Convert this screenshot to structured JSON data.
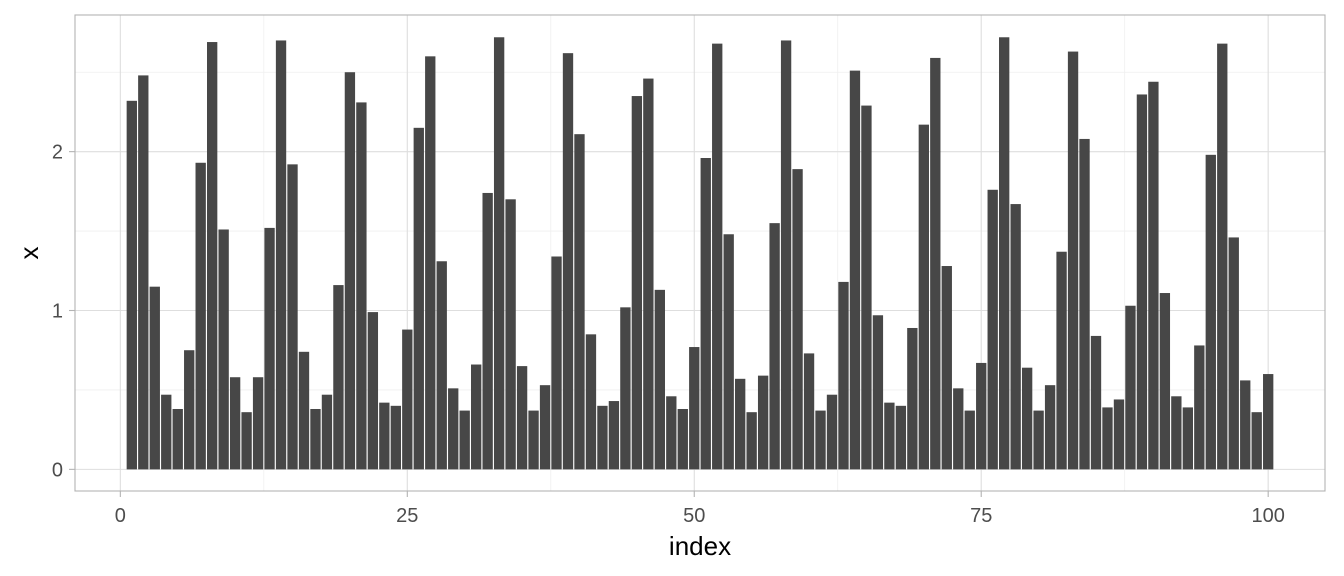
{
  "chart_data": {
    "type": "bar",
    "xlabel": "index",
    "ylabel": "x",
    "xlim": [
      -3.95,
      104.95
    ],
    "ylim": [
      -0.1362,
      2.8602
    ],
    "x_ticks": [
      0,
      25,
      50,
      75,
      100
    ],
    "x_tick_labels": [
      "0",
      "25",
      "50",
      "75",
      "100"
    ],
    "y_ticks": [
      0,
      1,
      2
    ],
    "y_tick_labels": [
      "0",
      "1",
      "2"
    ],
    "grid": true,
    "legend": "none",
    "bar_color": "#474747",
    "x": [
      1,
      2,
      3,
      4,
      5,
      6,
      7,
      8,
      9,
      10,
      11,
      12,
      13,
      14,
      15,
      16,
      17,
      18,
      19,
      20,
      21,
      22,
      23,
      24,
      25,
      26,
      27,
      28,
      29,
      30,
      31,
      32,
      33,
      34,
      35,
      36,
      37,
      38,
      39,
      40,
      41,
      42,
      43,
      44,
      45,
      46,
      47,
      48,
      49,
      50,
      51,
      52,
      53,
      54,
      55,
      56,
      57,
      58,
      59,
      60,
      61,
      62,
      63,
      64,
      65,
      66,
      67,
      68,
      69,
      70,
      71,
      72,
      73,
      74,
      75,
      76,
      77,
      78,
      79,
      80,
      81,
      82,
      83,
      84,
      85,
      86,
      87,
      88,
      89,
      90,
      91,
      92,
      93,
      94,
      95,
      96,
      97,
      98,
      99,
      100
    ],
    "values": [
      2.32,
      2.48,
      1.15,
      0.47,
      0.38,
      0.75,
      1.93,
      2.69,
      1.51,
      0.58,
      0.36,
      0.58,
      1.52,
      2.7,
      1.92,
      0.74,
      0.38,
      0.47,
      1.16,
      2.5,
      2.31,
      0.99,
      0.42,
      0.4,
      0.88,
      2.15,
      2.6,
      1.31,
      0.51,
      0.37,
      0.66,
      1.74,
      2.72,
      1.7,
      0.65,
      0.37,
      0.53,
      1.34,
      2.62,
      2.11,
      0.85,
      0.4,
      0.43,
      1.02,
      2.35,
      2.46,
      1.13,
      0.46,
      0.38,
      0.77,
      1.96,
      2.68,
      1.48,
      0.57,
      0.36,
      0.59,
      1.55,
      2.7,
      1.89,
      0.73,
      0.37,
      0.47,
      1.18,
      2.51,
      2.29,
      0.97,
      0.42,
      0.4,
      0.89,
      2.17,
      2.59,
      1.28,
      0.51,
      0.37,
      0.67,
      1.76,
      2.72,
      1.67,
      0.64,
      0.37,
      0.53,
      1.37,
      2.63,
      2.08,
      0.84,
      0.39,
      0.44,
      1.03,
      2.36,
      2.44,
      1.11,
      0.46,
      0.39,
      0.78,
      1.98,
      2.68,
      1.46,
      0.56,
      0.36,
      0.6
    ]
  }
}
